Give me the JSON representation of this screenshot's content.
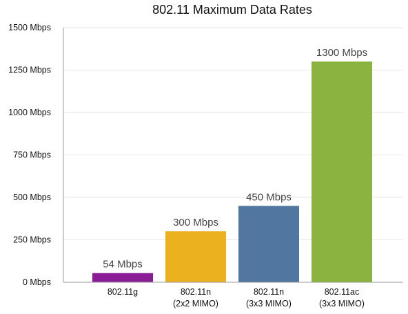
{
  "chart_data": {
    "type": "bar",
    "title": "802.11 Maximum Data Rates",
    "xlabel": "",
    "ylabel": "",
    "ylim": [
      0,
      1500
    ],
    "yticks": [
      0,
      250,
      500,
      750,
      1000,
      1250,
      1500
    ],
    "ytick_labels": [
      "0 Mbps",
      "250 Mbps",
      "500 Mbps",
      "750 Mbps",
      "1000 Mbps",
      "1250 Mbps",
      "1500 Mbps"
    ],
    "grid": true,
    "legend": "none",
    "categories": [
      [
        "802.11g"
      ],
      [
        "802.11n",
        "(2x2 MIMO)"
      ],
      [
        "802.11n",
        "(3x3 MIMO)"
      ],
      [
        "802.11ac",
        "(3x3 MIMO)"
      ]
    ],
    "values": [
      54,
      300,
      450,
      1300
    ],
    "value_labels": [
      "54 Mbps",
      "300 Mbps",
      "450 Mbps",
      "1300 Mbps"
    ],
    "colors": [
      "#8a1c96",
      "#ebb11f",
      "#51769f",
      "#8ab33f"
    ]
  }
}
